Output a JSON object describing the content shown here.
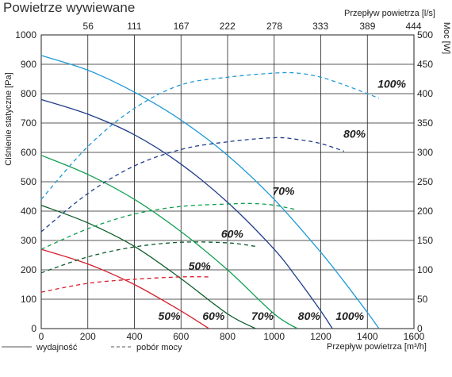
{
  "chart_data": {
    "type": "line",
    "title": "Powietrze wywiewane",
    "xlabel": "Przepływ powietrza [m³/h]",
    "ylabel": "Ciśnienie statyczne [Pa]",
    "x2label": "Przepływ powietrza [l/s]",
    "y2label": "Moc [W]",
    "xlim": [
      0,
      1600
    ],
    "ylim": [
      0,
      1000
    ],
    "y2lim": [
      0,
      500
    ],
    "xticks": [
      "0",
      "200",
      "400",
      "600",
      "800",
      "1000",
      "1200",
      "1400",
      "1600"
    ],
    "yticks": [
      "0",
      "100",
      "200",
      "300",
      "400",
      "500",
      "600",
      "700",
      "800",
      "900",
      "1000"
    ],
    "x2ticks": [
      "56",
      "111",
      "167",
      "222",
      "278",
      "333",
      "389",
      "444"
    ],
    "y2ticks": [
      "0",
      "50",
      "100",
      "150",
      "200",
      "250",
      "300",
      "350",
      "400",
      "450",
      "500"
    ],
    "grid": true,
    "legend": {
      "position": "bottom-left",
      "entries": [
        {
          "label": "wydajność",
          "style": "solid"
        },
        {
          "label": "pobór mocy",
          "style": "dashed"
        }
      ]
    },
    "series": [
      {
        "name": "100%",
        "type": "performance",
        "axis": "left",
        "color": "#1e9ad6",
        "x": [
          0,
          200,
          400,
          600,
          800,
          1000,
          1200,
          1300,
          1400,
          1450
        ],
        "y": [
          930,
          880,
          805,
          710,
          590,
          440,
          260,
          160,
          55,
          0
        ]
      },
      {
        "name": "80%",
        "type": "performance",
        "axis": "left",
        "color": "#1f3d8c",
        "x": [
          0,
          200,
          400,
          600,
          800,
          1000,
          1100,
          1200,
          1250
        ],
        "y": [
          780,
          730,
          660,
          560,
          430,
          270,
          170,
          60,
          0
        ]
      },
      {
        "name": "70%",
        "type": "performance",
        "axis": "left",
        "color": "#10a050",
        "x": [
          0,
          200,
          400,
          600,
          800,
          1000,
          1100
        ],
        "y": [
          590,
          525,
          440,
          330,
          200,
          50,
          0
        ]
      },
      {
        "name": "60%",
        "type": "performance",
        "axis": "left",
        "color": "#0d5c2a",
        "x": [
          0,
          200,
          400,
          600,
          800,
          920
        ],
        "y": [
          420,
          360,
          280,
          170,
          50,
          0
        ]
      },
      {
        "name": "50%",
        "type": "performance",
        "axis": "left",
        "color": "#d61f2b",
        "x": [
          0,
          200,
          400,
          600,
          720
        ],
        "y": [
          270,
          220,
          150,
          60,
          0
        ]
      },
      {
        "name": "100%",
        "type": "power",
        "axis": "right",
        "color": "#1e9ad6",
        "x": [
          0,
          200,
          400,
          600,
          800,
          1000,
          1100,
          1200,
          1300,
          1400,
          1450
        ],
        "y": [
          220,
          310,
          375,
          415,
          428,
          435,
          435,
          428,
          415,
          400,
          392
        ]
      },
      {
        "name": "80%",
        "type": "power",
        "axis": "right",
        "color": "#1f3d8c",
        "x": [
          0,
          200,
          400,
          600,
          800,
          1000,
          1100,
          1200,
          1300
        ],
        "y": [
          165,
          230,
          277,
          305,
          318,
          325,
          322,
          315,
          302
        ]
      },
      {
        "name": "70%",
        "type": "power",
        "axis": "right",
        "color": "#10a050",
        "x": [
          0,
          200,
          400,
          600,
          800,
          900,
          1000,
          1100
        ],
        "y": [
          135,
          170,
          195,
          208,
          212,
          213,
          210,
          202
        ]
      },
      {
        "name": "60%",
        "type": "power",
        "axis": "right",
        "color": "#0d5c2a",
        "x": [
          0,
          200,
          400,
          600,
          800,
          920
        ],
        "y": [
          95,
          122,
          139,
          147,
          146,
          140
        ]
      },
      {
        "name": "50%",
        "type": "power",
        "axis": "right",
        "color": "#d61f2b",
        "x": [
          0,
          200,
          400,
          600,
          720
        ],
        "y": [
          62,
          77,
          84,
          88,
          88
        ]
      }
    ],
    "annotations": [
      {
        "text": "100%",
        "x": 1505,
        "y": 410,
        "axis": "right"
      },
      {
        "text": "80%",
        "x": 1345,
        "y": 325,
        "axis": "right"
      },
      {
        "text": "70%",
        "x": 1040,
        "y": 228,
        "axis": "right"
      },
      {
        "text": "60%",
        "x": 820,
        "y": 155,
        "axis": "right"
      },
      {
        "text": "50%",
        "x": 680,
        "y": 100,
        "axis": "right"
      },
      {
        "text": "50%",
        "x": 550,
        "y": 30,
        "axis": "left"
      },
      {
        "text": "60%",
        "x": 740,
        "y": 30,
        "axis": "left"
      },
      {
        "text": "70%",
        "x": 950,
        "y": 30,
        "axis": "left"
      },
      {
        "text": "80%",
        "x": 1150,
        "y": 30,
        "axis": "left"
      },
      {
        "text": "100%",
        "x": 1325,
        "y": 30,
        "axis": "left"
      }
    ]
  }
}
